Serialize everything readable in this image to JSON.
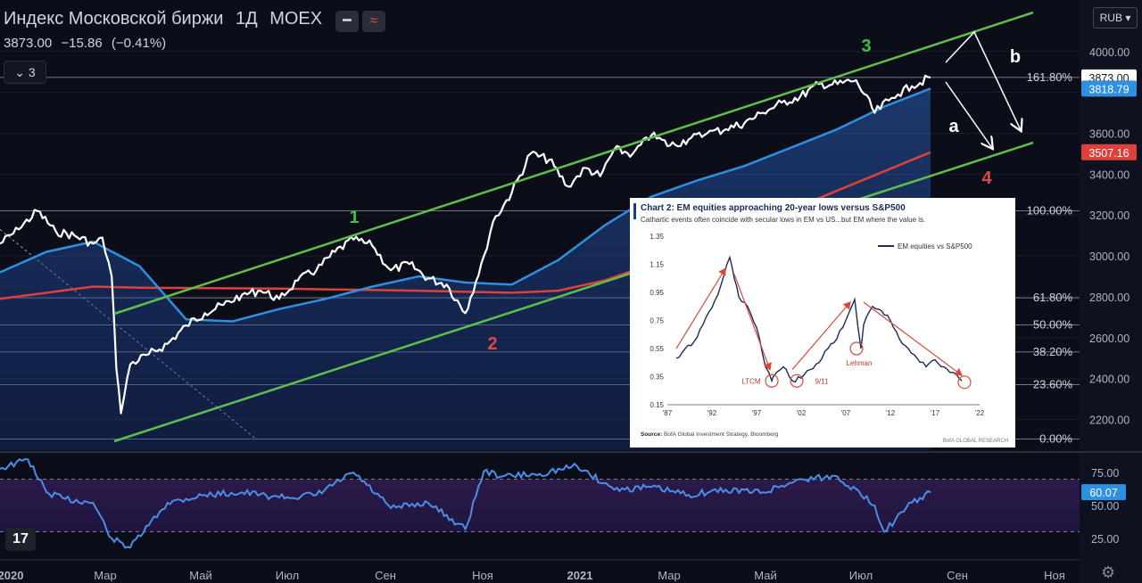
{
  "header": {
    "title": "Индекс Московской биржи",
    "interval": "1Д",
    "exchange": "MOEX",
    "last": "3873.00",
    "change": "−15.86",
    "change_pct": "(−0.41%)",
    "collapse_label": "3",
    "currency": "RUB"
  },
  "colors": {
    "background": "#0b0d18",
    "price": "#ffffff",
    "ma_fast": "#2f8fe0",
    "ma_slow": "#e0403a",
    "channel": "#5fbf4a",
    "rsi": "#4a8ee8",
    "wave_green": "#3ec43e",
    "wave_red": "#e04848"
  },
  "chart_data": [
    {
      "type": "line",
      "xlabel": "",
      "ylabel": "",
      "ylim": [
        2050,
        4230
      ],
      "x_ticks": [
        "2020",
        "Мар",
        "Май",
        "Июл",
        "Сен",
        "Ноя",
        "2021",
        "Мар",
        "Май",
        "Июл",
        "Сен",
        "Ноя"
      ],
      "y_ticks": [
        2200,
        2400,
        2600,
        2800,
        3000,
        3200,
        3400,
        3600,
        3800,
        4000
      ],
      "price_labels": {
        "last": "3873.00",
        "ma_fast": "3818.79",
        "ma_slow": "3507.16"
      },
      "fib_levels": [
        {
          "label": "161.80%",
          "value": 3873
        },
        {
          "label": "100.00%",
          "value": 3220
        },
        {
          "label": "61.80%",
          "value": 2795
        },
        {
          "label": "50.00%",
          "value": 2662
        },
        {
          "label": "38.20%",
          "value": 2530
        },
        {
          "label": "23.60%",
          "value": 2370
        },
        {
          "label": "0.00%",
          "value": 2105
        }
      ],
      "wave_labels": [
        "1",
        "2",
        "3",
        "4",
        "a",
        "b"
      ],
      "series": [
        {
          "key": "price",
          "t": [
            0,
            0.02,
            0.04,
            0.06,
            0.08,
            0.1,
            0.11,
            0.12,
            0.125,
            0.13,
            0.14,
            0.16,
            0.18,
            0.2,
            0.22,
            0.24,
            0.26,
            0.28,
            0.3,
            0.32,
            0.34,
            0.36,
            0.38,
            0.4,
            0.42,
            0.44,
            0.46,
            0.48,
            0.5,
            0.52,
            0.53,
            0.55,
            0.57,
            0.59,
            0.61,
            0.62,
            0.63,
            0.645,
            0.66,
            0.68,
            0.7,
            0.72,
            0.74,
            0.76,
            0.78,
            0.8,
            0.82,
            0.84,
            0.86,
            0.88,
            0.9,
            0.92,
            0.94,
            0.955,
            0.965,
            0.98,
            1.0
          ],
          "values": [
            3060,
            3130,
            3220,
            3120,
            3100,
            3060,
            3090,
            2900,
            2450,
            2230,
            2470,
            2520,
            2570,
            2660,
            2720,
            2760,
            2810,
            2830,
            2790,
            2880,
            2930,
            3020,
            3080,
            3050,
            2930,
            2960,
            2890,
            2860,
            2720,
            3000,
            3170,
            3310,
            3500,
            3470,
            3340,
            3390,
            3430,
            3390,
            3520,
            3500,
            3590,
            3540,
            3570,
            3600,
            3620,
            3650,
            3700,
            3750,
            3780,
            3840,
            3840,
            3860,
            3700,
            3760,
            3790,
            3830,
            3873
          ]
        },
        {
          "key": "ma_fast",
          "t": [
            0,
            0.05,
            0.1,
            0.15,
            0.2,
            0.25,
            0.3,
            0.35,
            0.4,
            0.45,
            0.5,
            0.55,
            0.6,
            0.65,
            0.7,
            0.75,
            0.8,
            0.85,
            0.9,
            0.95,
            1.0
          ],
          "values": [
            2920,
            3020,
            3070,
            2950,
            2690,
            2680,
            2740,
            2790,
            2850,
            2900,
            2870,
            2860,
            2980,
            3150,
            3290,
            3370,
            3440,
            3530,
            3620,
            3730,
            3819
          ]
        },
        {
          "key": "ma_slow",
          "t": [
            0,
            0.1,
            0.15,
            0.3,
            0.45,
            0.55,
            0.6,
            0.65,
            0.7,
            0.8,
            0.9,
            1.0
          ],
          "values": [
            2790,
            2850,
            2845,
            2840,
            2830,
            2820,
            2830,
            2880,
            2960,
            3130,
            3320,
            3507
          ]
        }
      ]
    },
    {
      "type": "line",
      "title": "",
      "ylim": [
        10,
        90
      ],
      "y_ticks": [
        25.0,
        50.0,
        75.0
      ],
      "last_label": "60.07",
      "series": [
        {
          "key": "rsi",
          "t": [
            0,
            0.03,
            0.05,
            0.07,
            0.1,
            0.12,
            0.14,
            0.18,
            0.22,
            0.26,
            0.3,
            0.34,
            0.38,
            0.42,
            0.46,
            0.5,
            0.52,
            0.54,
            0.58,
            0.62,
            0.66,
            0.7,
            0.74,
            0.78,
            0.82,
            0.86,
            0.9,
            0.94,
            0.95,
            0.98,
            1.0
          ],
          "values": [
            78,
            85,
            60,
            55,
            52,
            25,
            18,
            52,
            58,
            60,
            56,
            58,
            75,
            48,
            52,
            32,
            76,
            72,
            74,
            80,
            62,
            64,
            58,
            62,
            60,
            70,
            72,
            50,
            30,
            52,
            60
          ]
        }
      ]
    },
    {
      "type": "line",
      "title": "Chart 2: EM equities approaching 20-year lows versus S&P500",
      "subtitle": "Cathartic events often coincide with secular lows in EM vs US...but EM where the value is.",
      "ylim": [
        0.15,
        1.35
      ],
      "x_ticks": [
        "'87",
        "'92",
        "'97",
        "'02",
        "'07",
        "'12",
        "'17",
        "'22"
      ],
      "y_ticks": [
        0.15,
        0.35,
        0.55,
        0.75,
        0.95,
        1.15,
        1.35
      ],
      "annotations": [
        "LTCM",
        "9/11",
        "Lehman"
      ],
      "source": "Source:",
      "source_text": "BofA Global Investment Strategy, Bloomberg",
      "brand": "BofA GLOBAL RESEARCH",
      "series": [
        {
          "name": "EM equities vs S&P500",
          "x": [
            1988,
            1989,
            1990,
            1991,
            1992,
            1993,
            1994,
            1994.5,
            1995,
            1996,
            1997,
            1998,
            1998.7,
            1999,
            2000,
            2001,
            2002,
            2003,
            2004,
            2005,
            2006,
            2007,
            2008,
            2008.7,
            2009,
            2010,
            2011,
            2012,
            2013,
            2014,
            2015,
            2016,
            2017,
            2018,
            2019,
            2020
          ],
          "values": [
            0.48,
            0.55,
            0.6,
            0.72,
            0.84,
            1.0,
            1.2,
            1.05,
            0.92,
            0.85,
            0.7,
            0.42,
            0.32,
            0.36,
            0.42,
            0.32,
            0.34,
            0.4,
            0.45,
            0.55,
            0.62,
            0.75,
            0.9,
            0.55,
            0.72,
            0.85,
            0.82,
            0.75,
            0.62,
            0.55,
            0.48,
            0.42,
            0.47,
            0.42,
            0.38,
            0.32
          ]
        }
      ]
    }
  ]
}
